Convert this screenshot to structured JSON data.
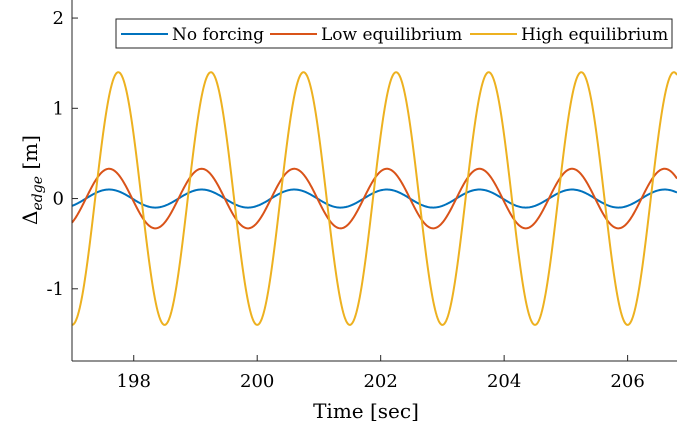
{
  "chart_data": {
    "type": "line",
    "xlabel": "Time [sec]",
    "ylabel": {
      "main": "Δ",
      "sub": "edge",
      "unit": " [m]"
    },
    "xlim": [
      197,
      206.8
    ],
    "ylim": [
      -1.8,
      2.2
    ],
    "xticks": [
      198,
      200,
      202,
      204,
      206
    ],
    "xtick_labels": [
      "198",
      "200",
      "202",
      "204",
      "206"
    ],
    "yticks": [
      -1,
      0,
      1,
      2
    ],
    "ytick_labels": [
      "-1",
      "0",
      "1",
      "2"
    ],
    "grid": false,
    "legend_position": "top-right",
    "period": 1.5,
    "series": [
      {
        "name": "No forcing",
        "color": "#0072BD",
        "amplitude": 0.1,
        "peak_time": 197.6
      },
      {
        "name": "Low equilibrium",
        "color": "#D95319",
        "amplitude": 0.33,
        "peak_time": 197.6
      },
      {
        "name": "High equilibrium",
        "color": "#EDB120",
        "amplitude": 1.4,
        "peak_time": 197.75
      }
    ]
  }
}
